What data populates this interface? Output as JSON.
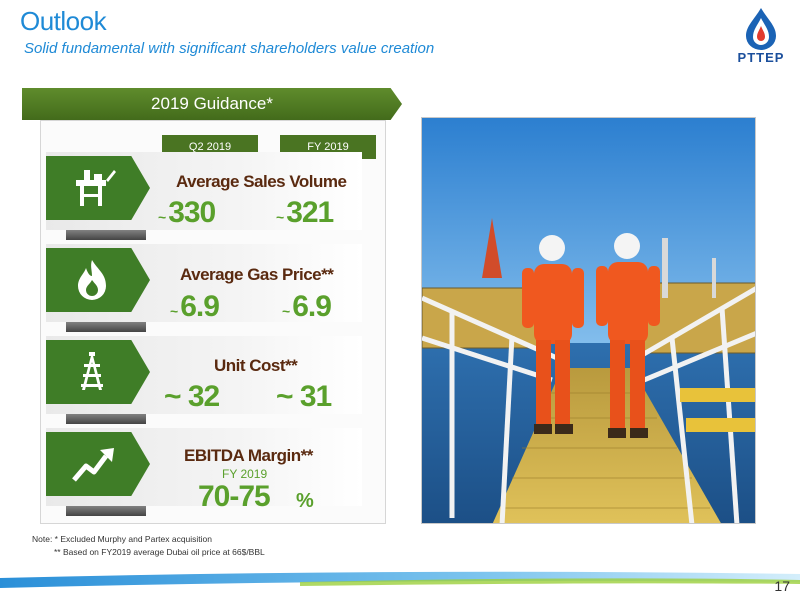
{
  "header": {
    "title": "Outlook",
    "subtitle": "Solid fundamental with significant shareholders value creation",
    "logo_text": "PTTEP"
  },
  "guidance": {
    "banner": "2019 Guidance*",
    "col_q2": "Q2 2019",
    "col_fy": "FY 2019",
    "tilde": "~",
    "metrics": [
      {
        "label": "Average Sales Volume",
        "q2": "330",
        "fy": "321",
        "icon": "oil-platform-icon"
      },
      {
        "label": "Average Gas Price**",
        "q2": "6.9",
        "fy": "6.9",
        "icon": "flame-icon"
      },
      {
        "label": "Unit Cost**",
        "q2": "32",
        "fy": "31",
        "icon": "drilling-rig-icon"
      },
      {
        "label": "EBITDA Margin**",
        "sub": "FY 2019",
        "value": "70-75",
        "unit": "%",
        "icon": "trend-up-arrow-icon"
      }
    ]
  },
  "notes": {
    "line1": "Note: *  Excluded Murphy and Partex acquisition",
    "line2": "** Based on FY2019 average Dubai oil price at 66$/BBL"
  },
  "page_number": "17",
  "colors": {
    "title_blue": "#1f8ad6",
    "banner_green": "#4a7422",
    "icon_green": "#3f7d27",
    "value_green": "#5aa02c",
    "label_brown": "#5a2a10"
  }
}
